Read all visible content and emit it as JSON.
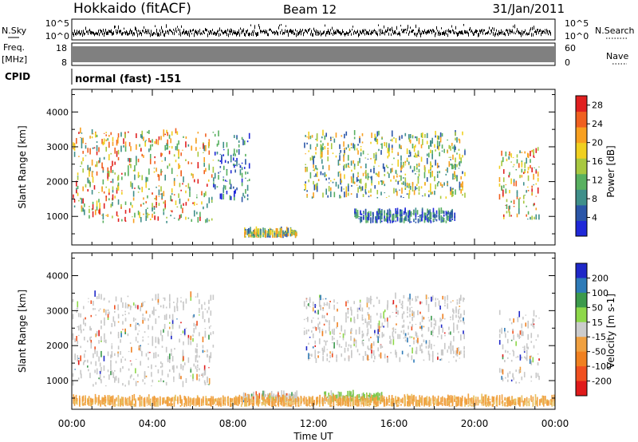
{
  "header": {
    "station": "Hokkaido (fitACF)",
    "beam": "Beam 12",
    "date": "31/Jan/2011"
  },
  "strips": {
    "nsky_label": "N.Sky",
    "nsearch_label": "N.Search",
    "noise_ticks": [
      "10^5",
      "10^0"
    ],
    "freq_label": "Freq.",
    "freq_unit": "[MHz]",
    "freq_ticks": [
      "18",
      "8"
    ],
    "nave_label": "Nave",
    "nave_ticks": [
      "60",
      "0"
    ],
    "cpid_label": "CPID",
    "cpid_value": "normal (fast) -151"
  },
  "chart_data": [
    {
      "type": "heatmap",
      "title": "",
      "xlabel": "Time UT",
      "ylabel": "Slant Range [km]",
      "xlim": [
        "00:00",
        "24:00"
      ],
      "x_ticks": [
        "00:00",
        "04:00",
        "08:00",
        "12:00",
        "16:00",
        "20:00",
        "00:00"
      ],
      "ylim": [
        180,
        4650
      ],
      "y_ticks": [
        1000,
        2000,
        3000,
        4000
      ],
      "colorbar": {
        "label": "Power [dB]",
        "ticks": [
          4,
          8,
          12,
          16,
          20,
          24,
          28
        ],
        "range": [
          0,
          30
        ],
        "colors": [
          "#1f28d8",
          "#2b56a8",
          "#3f8f8a",
          "#58b060",
          "#a8c840",
          "#f0d020",
          "#f8a020",
          "#f06020",
          "#e02020"
        ]
      },
      "echo_regions": [
        {
          "t_start": 0.0,
          "t_end": 7.0,
          "range_min": 800,
          "range_max": 3400,
          "value": "high"
        },
        {
          "t_start": 7.0,
          "t_end": 8.8,
          "range_min": 1400,
          "range_max": 3300,
          "value": "low"
        },
        {
          "t_start": 8.5,
          "t_end": 11.2,
          "range_min": 380,
          "range_max": 560,
          "value": "medium"
        },
        {
          "t_start": 11.5,
          "t_end": 19.5,
          "range_min": 1500,
          "range_max": 3350,
          "value": "medium"
        },
        {
          "t_start": 14.0,
          "t_end": 19.0,
          "range_min": 800,
          "range_max": 1100,
          "value": "low"
        },
        {
          "t_start": 21.2,
          "t_end": 23.2,
          "range_min": 900,
          "range_max": 2900,
          "value": "high"
        }
      ]
    },
    {
      "type": "heatmap",
      "title": "",
      "xlabel": "Time UT",
      "ylabel": "Slant Range [km]",
      "xlim": [
        "00:00",
        "24:00"
      ],
      "x_ticks": [
        "00:00",
        "04:00",
        "08:00",
        "12:00",
        "16:00",
        "20:00",
        "00:00"
      ],
      "ylim": [
        180,
        4650
      ],
      "y_ticks": [
        1000,
        2000,
        3000,
        4000
      ],
      "colorbar": {
        "label": "Velocity [m s-1]",
        "ticks": [
          200,
          100,
          50,
          15,
          -15,
          -50,
          -100,
          -200
        ],
        "colors": [
          "#1f28c8",
          "#2e7bb8",
          "#3c9a4c",
          "#8ed84a",
          "#cccccc",
          "#f0a040",
          "#f08020",
          "#f05020",
          "#e01a1a"
        ]
      },
      "echo_regions": [
        {
          "t_start": 0.0,
          "t_end": 7.0,
          "range_min": 800,
          "range_max": 3400,
          "value": "near zero"
        },
        {
          "t_start": 8.5,
          "t_end": 11.2,
          "range_min": 380,
          "range_max": 560,
          "value": "near zero"
        },
        {
          "t_start": 11.5,
          "t_end": 19.5,
          "range_min": 1500,
          "range_max": 3350,
          "value": "near zero / negative"
        },
        {
          "t_start": 12.5,
          "t_end": 15.5,
          "range_min": 380,
          "range_max": 560,
          "value": "positive (green)"
        },
        {
          "t_start": 0.0,
          "t_end": 24.0,
          "range_min": 250,
          "range_max": 450,
          "value": "negative (orange)"
        },
        {
          "t_start": 21.2,
          "t_end": 23.2,
          "range_min": 900,
          "range_max": 2900,
          "value": "near zero"
        }
      ]
    }
  ]
}
